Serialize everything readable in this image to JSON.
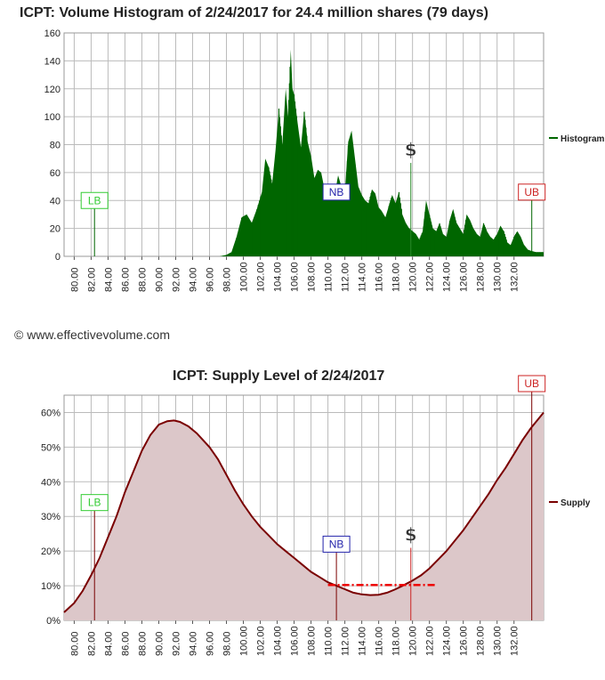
{
  "credit": "© www.effectivevolume.com",
  "colors": {
    "histogram": "#006600",
    "supply_line": "#7a0000",
    "supply_fill": "#dcc7c9",
    "lb": "#33cc33",
    "nb": "#2222aa",
    "ub": "#cc2222",
    "price_line": "#ee0000",
    "grid": "#bbbbbb"
  },
  "markers": {
    "lb": "LB",
    "nb": "NB",
    "ub": "UB",
    "price": "$"
  },
  "chart_data": [
    {
      "type": "area",
      "title": "ICPT: Volume Histogram of 2/24/2017 for 24.4 million shares (79 days)",
      "legend": "Histogram",
      "legend_position": "right",
      "xlim": [
        78.8,
        135.5
      ],
      "ylim": [
        0,
        160
      ],
      "y_ticks": [
        0,
        20,
        40,
        60,
        80,
        100,
        120,
        140,
        160
      ],
      "x_ticks": [
        "80.00",
        "82.00",
        "84.00",
        "86.00",
        "88.00",
        "90.00",
        "92.00",
        "94.00",
        "96.00",
        "98.00",
        "100.00",
        "102.00",
        "104.00",
        "106.00",
        "108.00",
        "110.00",
        "112.00",
        "114.00",
        "116.00",
        "118.00",
        "120.00",
        "122.00",
        "124.00",
        "126.00",
        "128.00",
        "130.00",
        "132.00"
      ],
      "grid": true,
      "series": [
        {
          "name": "Histogram",
          "x": [
            78.8,
            97.2,
            98.0,
            98.6,
            99.2,
            99.8,
            100.4,
            101.0,
            101.6,
            102.2,
            102.6,
            103.0,
            103.4,
            103.8,
            104.2,
            104.6,
            105.0,
            105.3,
            105.6,
            105.8,
            106.0,
            106.4,
            106.8,
            107.2,
            107.6,
            108.0,
            108.4,
            108.8,
            109.2,
            109.6,
            110.0,
            110.4,
            110.8,
            111.2,
            111.6,
            112.0,
            112.4,
            112.8,
            113.2,
            113.6,
            114.0,
            114.4,
            114.8,
            115.2,
            115.6,
            116.0,
            116.4,
            116.8,
            117.2,
            117.6,
            118.0,
            118.4,
            118.8,
            119.2,
            119.6,
            120.0,
            120.4,
            120.8,
            121.2,
            121.6,
            122.0,
            122.4,
            122.8,
            123.2,
            123.6,
            124.0,
            124.4,
            124.8,
            125.2,
            125.6,
            126.0,
            126.4,
            126.8,
            127.2,
            127.6,
            128.0,
            128.4,
            128.8,
            129.2,
            129.6,
            130.0,
            130.4,
            130.8,
            131.2,
            131.6,
            132.0,
            132.4,
            132.8,
            133.2,
            133.6,
            134.0,
            134.6,
            135.5
          ],
          "values": [
            0,
            0,
            1,
            3,
            14,
            28,
            30,
            24,
            34,
            46,
            70,
            64,
            52,
            76,
            106,
            80,
            120,
            100,
            148,
            120,
            116,
            96,
            78,
            104,
            82,
            72,
            56,
            62,
            60,
            48,
            42,
            52,
            44,
            58,
            50,
            46,
            82,
            90,
            70,
            50,
            44,
            40,
            38,
            48,
            45,
            35,
            32,
            28,
            36,
            44,
            38,
            46,
            30,
            24,
            20,
            18,
            16,
            12,
            18,
            40,
            30,
            20,
            18,
            24,
            16,
            14,
            26,
            34,
            24,
            20,
            16,
            30,
            26,
            20,
            16,
            14,
            24,
            18,
            14,
            12,
            16,
            22,
            18,
            10,
            8,
            14,
            18,
            14,
            8,
            5,
            4,
            3,
            3
          ]
        }
      ],
      "markers": [
        {
          "label": "LB",
          "x": 82.4,
          "y": 40
        },
        {
          "label": "NB",
          "x": 111.0,
          "y": 46
        },
        {
          "label": "$",
          "x": 119.8,
          "y": 72
        },
        {
          "label": "UB",
          "x": 134.1,
          "y": 46
        }
      ]
    },
    {
      "type": "area",
      "title": "ICPT: Supply Level of 2/24/2017",
      "legend": "Supply",
      "legend_position": "right",
      "xlim": [
        78.8,
        135.5
      ],
      "ylim": [
        0,
        65
      ],
      "y_ticks": [
        "0%",
        "10%",
        "20%",
        "30%",
        "40%",
        "50%",
        "60%"
      ],
      "x_ticks": [
        "80.00",
        "82.00",
        "84.00",
        "86.00",
        "88.00",
        "90.00",
        "92.00",
        "94.00",
        "96.00",
        "98.00",
        "100.00",
        "102.00",
        "104.00",
        "106.00",
        "108.00",
        "110.00",
        "112.00",
        "114.00",
        "116.00",
        "118.00",
        "120.00",
        "122.00",
        "124.00",
        "126.00",
        "128.00",
        "130.00",
        "132.00"
      ],
      "grid": true,
      "series": [
        {
          "name": "Supply",
          "x": [
            78.8,
            80,
            81,
            82,
            83,
            84,
            85,
            86,
            87,
            88,
            89,
            90,
            91,
            91.8,
            92.5,
            93.5,
            94.5,
            96,
            97,
            98,
            99,
            100,
            101,
            102,
            103,
            104,
            105,
            106,
            107,
            108,
            109,
            110,
            111,
            112,
            113,
            114,
            115,
            116,
            117,
            118,
            119,
            120,
            121,
            122,
            123,
            124,
            125,
            126,
            127,
            128,
            129,
            130,
            131,
            132,
            133,
            134,
            135.5
          ],
          "values": [
            2.3,
            5,
            8.5,
            13,
            18,
            24,
            30,
            37,
            43,
            49,
            53.5,
            56.5,
            57.5,
            57.7,
            57.3,
            56,
            54,
            50,
            46.5,
            42,
            37.5,
            33.5,
            30,
            27,
            24.5,
            22,
            20,
            18,
            16,
            14,
            12.5,
            11,
            10,
            9,
            8,
            7.5,
            7.3,
            7.4,
            8,
            9,
            10.2,
            11.5,
            13,
            15,
            17.5,
            20,
            23,
            26,
            29.5,
            33,
            36.5,
            40.5,
            44,
            48,
            52,
            55.5,
            60
          ]
        }
      ],
      "price_line": {
        "from_x": 110.0,
        "to_x": 122.8,
        "value": 10.2
      },
      "markers": [
        {
          "label": "LB",
          "x": 82.4,
          "y": 34
        },
        {
          "label": "NB",
          "x": 111.0,
          "y": 22
        },
        {
          "label": "$",
          "x": 119.8,
          "y": 23
        },
        {
          "label": "UB",
          "x": 134.1,
          "y": 67
        }
      ]
    }
  ]
}
